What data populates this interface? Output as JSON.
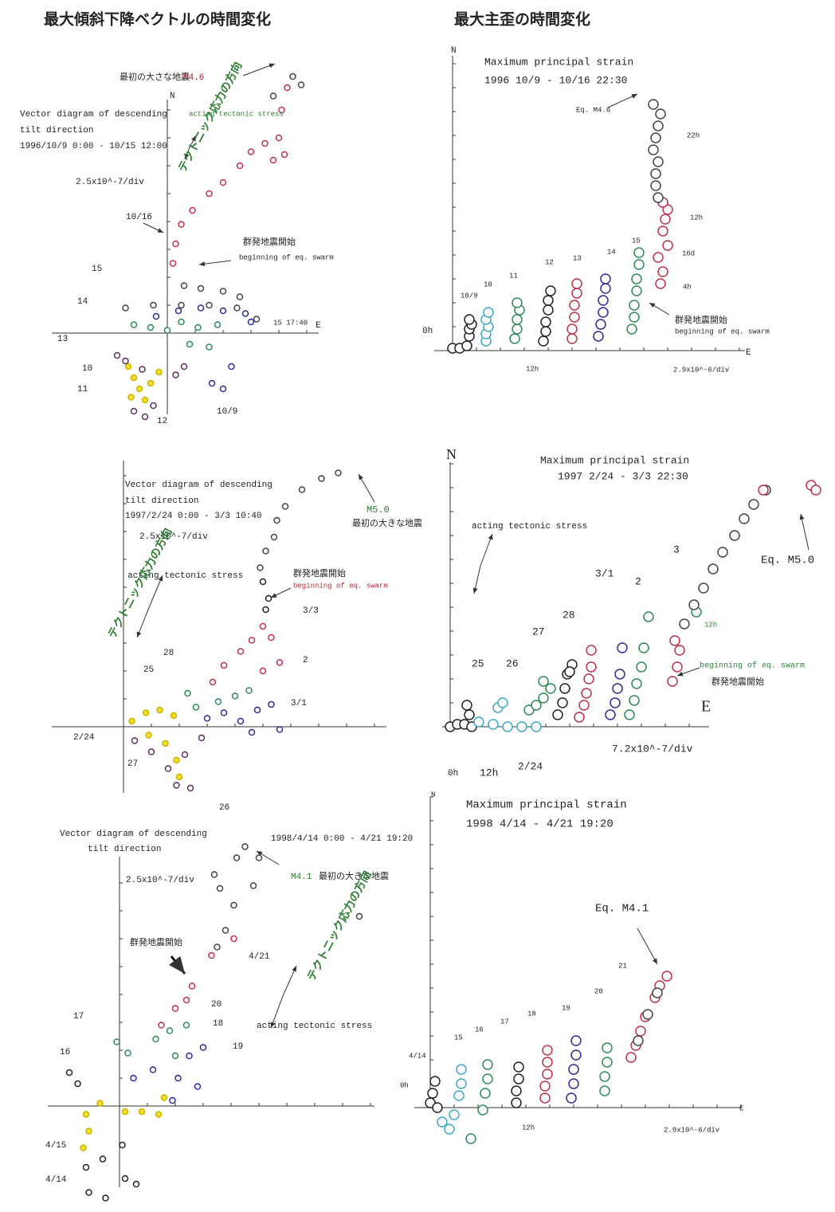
{
  "headings": [
    "最大傾斜下降ベクトルの時間変化",
    "最大主歪の時間変化"
  ],
  "chart_data": [
    {
      "type": "scatter",
      "labels": [
        "N",
        "E",
        "最初の大さな地震",
        "M4.6",
        "Vector diagram of descending",
        "tilt direction",
        "1996/10/9 0:00 - 10/15 12:00",
        "acting tectonic stress",
        "テクトニック応力の方向",
        "2.5x10^-7/div",
        "10/16",
        "群発地震開始",
        "beginning of eq. swarm",
        "15",
        "14",
        "13",
        "10",
        "11",
        "12",
        "10/9",
        "15 17:40"
      ],
      "series": [
        {
          "color": "#f2e02a",
          "x": [
            -1.4,
            -1.2,
            -1.0,
            -0.6,
            -0.3,
            -1.3,
            -0.8
          ],
          "y": [
            -1.2,
            -1.6,
            -2.0,
            -1.8,
            -1.4,
            -2.3,
            -2.4
          ]
        },
        {
          "color": "#5a2d5e",
          "x": [
            -1.8,
            -1.5,
            -0.9,
            -1.2,
            -0.8,
            -0.5,
            0.3,
            0.6
          ],
          "y": [
            -0.8,
            -1.0,
            -1.3,
            -2.8,
            -3.0,
            -2.6,
            -1.5,
            -1.2
          ]
        },
        {
          "color": "#2e8b57",
          "x": [
            -1.2,
            -0.6,
            0,
            0.5,
            1.1,
            1.8,
            0.8,
            1.5
          ],
          "y": [
            0.3,
            0.2,
            0.1,
            0.4,
            0.2,
            0.3,
            -0.4,
            -0.5
          ]
        },
        {
          "color": "#2b2b9a",
          "x": [
            -0.4,
            0.4,
            1.2,
            2.0,
            2.8,
            3.0,
            1.6,
            2.0,
            2.3
          ],
          "y": [
            0.6,
            0.8,
            0.9,
            0.8,
            0.7,
            0.4,
            -1.8,
            -2.0,
            -1.2
          ]
        },
        {
          "color": "#444444",
          "x": [
            -1.5,
            -0.5,
            0.5,
            1.5,
            2.5,
            3.2,
            0.6,
            1.2,
            2.0,
            2.6
          ],
          "y": [
            0.9,
            1.0,
            1.0,
            1.0,
            0.9,
            0.5,
            1.7,
            1.6,
            1.5,
            1.3
          ]
        },
        {
          "color": "#c0304a",
          "x": [
            0.2,
            0.3,
            0.5,
            0.9,
            1.5,
            2.0,
            2.6,
            3.0,
            3.5,
            4.0,
            3.8,
            4.2,
            4.1,
            4.3
          ],
          "y": [
            2.5,
            3.2,
            3.9,
            4.4,
            5.0,
            5.4,
            6.0,
            6.5,
            6.8,
            7.0,
            6.2,
            6.4,
            8.0,
            8.8
          ]
        },
        {
          "color": "#444444",
          "x": [
            4.5,
            3.8,
            4.8
          ],
          "y": [
            9.2,
            8.5,
            8.9
          ]
        }
      ]
    },
    {
      "type": "scatter",
      "labels": [
        "Vector diagram of descending",
        "tilt direction",
        "1997/2/24 0:00 - 3/3 10:40",
        "2.5x10^-7/div",
        "acting tectonic stress",
        "テクトニック応力の方向",
        "M5.0",
        "最初の大きな地震",
        "群発地震開始",
        "beginning of eq. swarm",
        "3/3",
        "2",
        "3/1",
        "28",
        "25",
        "2/24",
        "27",
        "26"
      ],
      "series": [
        {
          "color": "#f2e02a",
          "x": [
            0.3,
            0.8,
            1.3,
            1.8,
            0.9,
            1.5,
            1.9,
            2.0
          ],
          "y": [
            0.2,
            0.5,
            0.6,
            0.4,
            -0.3,
            -0.6,
            -1.2,
            -1.8
          ]
        },
        {
          "color": "#5a2d5e",
          "x": [
            0.4,
            1.0,
            1.6,
            2.2,
            2.8,
            1.9,
            2.4
          ],
          "y": [
            -0.5,
            -0.9,
            -1.5,
            -1.0,
            -0.4,
            -2.1,
            -2.2
          ]
        },
        {
          "color": "#2e8b57",
          "x": [
            2.3,
            2.6,
            3.4,
            4.0,
            4.5
          ],
          "y": [
            1.2,
            0.7,
            0.9,
            1.1,
            1.3
          ]
        },
        {
          "color": "#2b2b9a",
          "x": [
            3.0,
            3.6,
            4.2,
            4.8,
            5.3,
            5.6,
            4.6
          ],
          "y": [
            0.3,
            0.5,
            0.2,
            0.6,
            0.8,
            -0.1,
            -0.2
          ]
        },
        {
          "color": "#c0304a",
          "x": [
            3.2,
            3.6,
            4.2,
            4.6,
            5.0,
            5.3,
            5.6,
            5.0
          ],
          "y": [
            1.6,
            2.2,
            2.7,
            3.1,
            3.6,
            3.2,
            2.3,
            2.0
          ]
        },
        {
          "color": "#222222",
          "x": [
            5.1,
            5.2,
            5.0
          ],
          "y": [
            4.2,
            4.6,
            5.2
          ]
        },
        {
          "color": "#444444",
          "x": [
            4.9,
            5.1,
            5.4,
            5.5,
            5.8,
            6.4,
            7.1,
            7.7
          ],
          "y": [
            5.7,
            6.3,
            6.8,
            7.4,
            7.9,
            8.5,
            8.9,
            9.1
          ]
        }
      ]
    },
    {
      "type": "scatter",
      "labels": [
        "Vector diagram of descending",
        "tilt direction",
        "1998/4/14 0:00 - 4/21 19:20",
        "2.5x10^-7/div",
        "M4.1",
        "最初の大きな地震",
        "群発地震開始",
        "4/21",
        "20",
        "18",
        "19",
        "17",
        "16",
        "acting tectonic stress",
        "テクトニック応力の方向",
        "4/15",
        "4/14"
      ],
      "series": [
        {
          "color": "#f2e02a",
          "x": [
            -1.2,
            -1.1,
            -1.3,
            0.2,
            0.8,
            1.4,
            1.6,
            -0.7
          ],
          "y": [
            -0.3,
            -0.9,
            -1.5,
            -0.2,
            -0.2,
            -0.3,
            0.3,
            0.1
          ]
        },
        {
          "color": "#222222",
          "x": [
            -1.5,
            -1.8,
            -1.2,
            -0.6,
            0.1,
            0.2,
            -1.1,
            -0.5,
            0.6
          ],
          "y": [
            0.8,
            1.2,
            -2.2,
            -1.9,
            -1.4,
            -2.6,
            -3.1,
            -3.3,
            -2.8
          ]
        },
        {
          "color": "#2e8b57",
          "x": [
            -0.1,
            0.3,
            1.3,
            1.8,
            2.4,
            2.0
          ],
          "y": [
            2.3,
            1.9,
            2.4,
            2.7,
            2.9,
            1.8
          ]
        },
        {
          "color": "#2b2b9a",
          "x": [
            0.5,
            1.2,
            2.1,
            2.5,
            3.0,
            2.8,
            1.9
          ],
          "y": [
            1.0,
            1.3,
            1.0,
            1.8,
            2.1,
            0.7,
            0.2
          ]
        },
        {
          "color": "#c0304a",
          "x": [
            1.5,
            2.0,
            2.4,
            2.6,
            3.3,
            4.1
          ],
          "y": [
            2.9,
            3.5,
            3.8,
            4.3,
            5.4,
            6.0
          ]
        },
        {
          "color": "#444444",
          "x": [
            3.5,
            3.8,
            4.1,
            3.6,
            3.4,
            4.2,
            4.5,
            5.0,
            8.6,
            4.8
          ],
          "y": [
            5.7,
            6.3,
            7.2,
            7.8,
            8.3,
            8.9,
            9.3,
            8.9,
            6.8,
            7.9
          ]
        }
      ]
    },
    {
      "type": "scatter",
      "labels": [
        "N",
        "E",
        "Maximum principal strain",
        "1996 10/9 - 10/16  22:30",
        "Eq. M4.6",
        "22h",
        "12h",
        "16d",
        "4h",
        "15",
        "14",
        "13",
        "12",
        "11",
        "10",
        "10/9",
        "0h",
        "12h",
        "群発地震開始",
        "beginning of eq. swarm",
        "2.9x10^-6/div"
      ],
      "series": [
        {
          "color": "#222222",
          "x": [
            0,
            0.3,
            0.6,
            0.7,
            0.7,
            0.8,
            0.7
          ],
          "y": [
            0.1,
            0.1,
            0.2,
            0.6,
            0.9,
            1.1,
            1.3
          ]
        },
        {
          "color": "#3aa8c8",
          "x": [
            1.4,
            1.4,
            1.5,
            1.4,
            1.5
          ],
          "y": [
            0.4,
            0.7,
            1.0,
            1.3,
            1.6
          ]
        },
        {
          "color": "#2e8b57",
          "x": [
            2.6,
            2.7,
            2.7,
            2.8,
            2.7
          ],
          "y": [
            0.5,
            0.9,
            1.3,
            1.7,
            2.0
          ]
        },
        {
          "color": "#222222",
          "x": [
            3.8,
            3.9,
            3.9,
            4.0,
            4.0,
            4.1
          ],
          "y": [
            0.4,
            0.8,
            1.2,
            1.7,
            2.1,
            2.5
          ]
        },
        {
          "color": "#c0304a",
          "x": [
            5.0,
            5.0,
            5.1,
            5.1,
            5.2,
            5.2
          ],
          "y": [
            0.5,
            0.9,
            1.4,
            1.9,
            2.4,
            2.8
          ]
        },
        {
          "color": "#2b2b9a",
          "x": [
            6.1,
            6.2,
            6.3,
            6.3,
            6.4,
            6.4
          ],
          "y": [
            0.6,
            1.1,
            1.6,
            2.1,
            2.6,
            3.0
          ]
        },
        {
          "color": "#2e8b57",
          "x": [
            7.5,
            7.6,
            7.6,
            7.7,
            7.7,
            7.8,
            7.8
          ],
          "y": [
            0.9,
            1.4,
            1.9,
            2.5,
            3.0,
            3.6,
            4.1
          ]
        },
        {
          "color": "#c0304a",
          "x": [
            8.7,
            8.8,
            8.6,
            9.0,
            8.8,
            8.9,
            9.0,
            8.8
          ],
          "y": [
            2.8,
            3.3,
            3.9,
            4.4,
            5.0,
            5.5,
            5.9,
            6.2
          ]
        },
        {
          "color": "#444444",
          "x": [
            8.6,
            8.5,
            8.5,
            8.6,
            8.4,
            8.5,
            8.6,
            8.7,
            8.4
          ],
          "y": [
            6.4,
            6.9,
            7.4,
            7.9,
            8.4,
            8.9,
            9.4,
            9.9,
            10.3
          ]
        }
      ]
    },
    {
      "type": "scatter",
      "labels": [
        "N",
        "E",
        "Maximum principal strain",
        "1997 2/24 - 3/3 22:30",
        "acting tectonic stress",
        "3",
        "2",
        "3/1",
        "28",
        "27",
        "26",
        "25",
        "Eq. M5.0",
        "12h",
        "beginning of eq. swarm",
        "群発地震開始",
        "7.2x10^-7/div",
        "0h",
        "12h",
        "2/24"
      ],
      "series": [
        {
          "color": "#222222",
          "x": [
            0,
            0.3,
            0.6,
            0.9,
            0.8,
            0.7
          ],
          "y": [
            0,
            0.1,
            0.1,
            0,
            0.5,
            0.9
          ]
        },
        {
          "color": "#3aa8c8",
          "x": [
            1.2,
            1.8,
            2.4,
            3.0,
            3.6,
            2.0,
            2.2
          ],
          "y": [
            0.2,
            0.1,
            0,
            0,
            0,
            0.8,
            1.0
          ]
        },
        {
          "color": "#2e8b57",
          "x": [
            3.3,
            3.6,
            3.9,
            4.2,
            3.9
          ],
          "y": [
            0.7,
            0.9,
            1.2,
            1.6,
            1.9
          ]
        },
        {
          "color": "#222222",
          "x": [
            4.5,
            4.7,
            4.8,
            4.9,
            5.1,
            5.0
          ],
          "y": [
            0.5,
            1.0,
            1.6,
            2.2,
            2.6,
            2.3
          ]
        },
        {
          "color": "#c0304a",
          "x": [
            5.4,
            5.6,
            5.7,
            5.8,
            5.9,
            5.9
          ],
          "y": [
            0.4,
            0.9,
            1.4,
            2.0,
            2.5,
            3.2
          ]
        },
        {
          "color": "#2b2b9a",
          "x": [
            6.7,
            6.9,
            7.0,
            7.1,
            7.2
          ],
          "y": [
            0.5,
            1.0,
            1.6,
            2.2,
            3.3
          ]
        },
        {
          "color": "#2e8b57",
          "x": [
            7.5,
            7.7,
            7.8,
            8.0,
            8.1,
            8.3
          ],
          "y": [
            0.5,
            1.1,
            1.8,
            2.5,
            3.3,
            4.6
          ]
        },
        {
          "color": "#c0304a",
          "x": [
            9.3,
            9.5,
            9.6,
            9.4
          ],
          "y": [
            1.9,
            2.5,
            3.2,
            3.6
          ]
        },
        {
          "color": "#2e8b57",
          "x": [
            10.3
          ],
          "y": [
            4.8
          ]
        },
        {
          "color": "#444444",
          "x": [
            9.8,
            10.2,
            10.6,
            11.0,
            11.4,
            11.9,
            12.3,
            12.7,
            13.2
          ],
          "y": [
            4.3,
            5.1,
            5.8,
            6.6,
            7.3,
            8.0,
            8.7,
            9.3,
            9.9
          ]
        },
        {
          "color": "#c0304a",
          "x": [
            13.1,
            15.1,
            15.3
          ],
          "y": [
            9.9,
            10.1,
            9.9
          ]
        }
      ]
    },
    {
      "type": "scatter",
      "labels": [
        "N",
        "E",
        "Maximum principal strain",
        "1998 4/14 - 4/21  19:20",
        "Eq. M4.1",
        "21",
        "20",
        "19",
        "18",
        "17",
        "16",
        "15",
        "4/14",
        "0h",
        "12h",
        "2.9x10^-6/div"
      ],
      "series": [
        {
          "color": "#222222",
          "x": [
            0,
            0.3,
            0.1,
            0.2
          ],
          "y": [
            0.2,
            0,
            0.6,
            1.1
          ]
        },
        {
          "color": "#3aa8c8",
          "x": [
            0.5,
            0.8,
            1.0,
            1.2,
            1.3,
            1.3
          ],
          "y": [
            -0.6,
            -0.9,
            -0.3,
            0.5,
            1.0,
            1.6
          ]
        },
        {
          "color": "#2e8b57",
          "x": [
            1.7,
            2.2,
            2.3,
            2.4,
            2.4
          ],
          "y": [
            -1.3,
            -0.1,
            0.6,
            1.2,
            1.8
          ]
        },
        {
          "color": "#222222",
          "x": [
            3.6,
            3.6,
            3.7,
            3.7
          ],
          "y": [
            0.2,
            0.7,
            1.2,
            1.7
          ]
        },
        {
          "color": "#c0304a",
          "x": [
            4.8,
            4.8,
            4.9,
            4.9,
            4.9
          ],
          "y": [
            0.4,
            0.9,
            1.4,
            1.9,
            2.4
          ]
        },
        {
          "color": "#2b2b9a",
          "x": [
            5.9,
            6.0,
            6.0,
            6.1,
            6.1
          ],
          "y": [
            0.4,
            1.0,
            1.6,
            2.2,
            2.8
          ]
        },
        {
          "color": "#2e8b57",
          "x": [
            7.3,
            7.3,
            7.4,
            7.4
          ],
          "y": [
            0.7,
            1.3,
            1.9,
            2.5
          ]
        },
        {
          "color": "#c0304a",
          "x": [
            8.4,
            8.6,
            8.8,
            9.0,
            9.4,
            9.6,
            9.9
          ],
          "y": [
            2.1,
            2.6,
            3.2,
            3.8,
            4.6,
            5.1,
            5.5
          ]
        },
        {
          "color": "#444444",
          "x": [
            8.7,
            9.1,
            9.5
          ],
          "y": [
            2.8,
            3.9,
            4.8
          ]
        }
      ]
    }
  ]
}
